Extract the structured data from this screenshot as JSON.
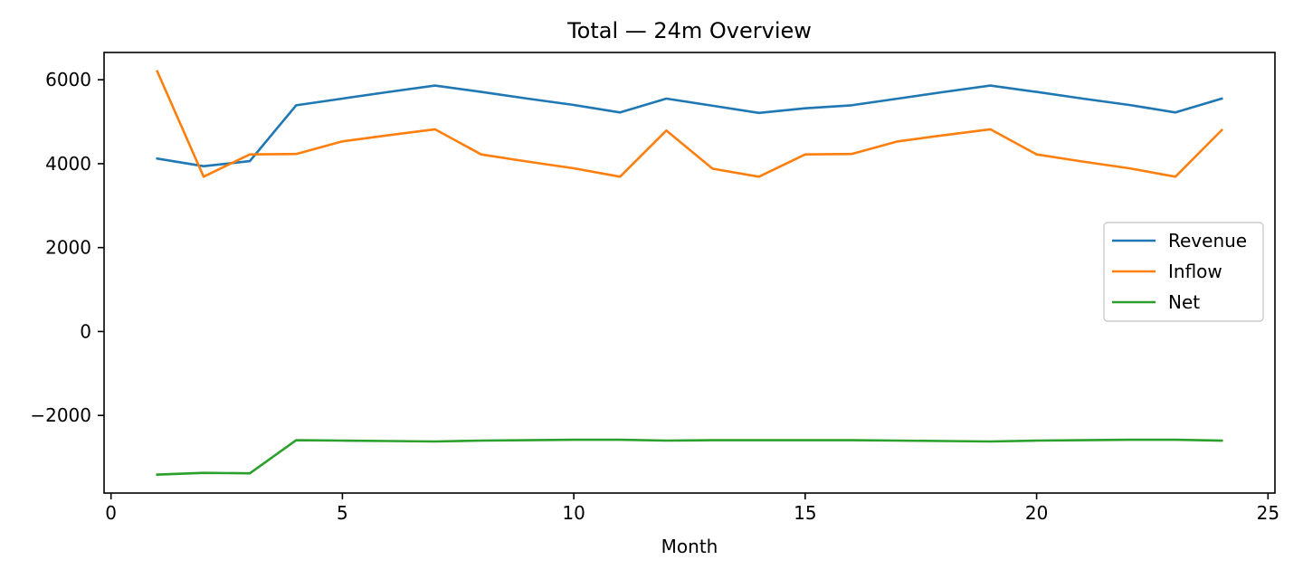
{
  "chart_data": {
    "type": "line",
    "title": "Total — 24m Overview",
    "xlabel": "Month",
    "ylabel": "",
    "x": [
      1,
      2,
      3,
      4,
      5,
      6,
      7,
      8,
      9,
      10,
      11,
      12,
      13,
      14,
      15,
      16,
      17,
      18,
      19,
      20,
      21,
      22,
      23,
      24
    ],
    "xlim": [
      -0.15,
      25.15
    ],
    "ylim": [
      -3850,
      6650
    ],
    "xticks": [
      0,
      5,
      10,
      15,
      20,
      25
    ],
    "yticks": [
      -2000,
      0,
      2000,
      4000,
      6000
    ],
    "ytick_labels": [
      "−2000",
      "0",
      "2000",
      "4000",
      "6000"
    ],
    "grid": false,
    "legend_position": "center-right",
    "series": [
      {
        "name": "Revenue",
        "color": "#1f77b4",
        "values": [
          4120,
          3940,
          4060,
          5390,
          5550,
          5710,
          5860,
          5710,
          5550,
          5400,
          5220,
          5550,
          5380,
          5210,
          5320,
          5390,
          5550,
          5710,
          5860,
          5710,
          5550,
          5400,
          5220,
          5550
        ]
      },
      {
        "name": "Inflow",
        "color": "#ff7f0e",
        "values": [
          6200,
          3690,
          4220,
          4230,
          4530,
          4680,
          4820,
          4220,
          4050,
          3890,
          3690,
          4790,
          3880,
          3690,
          4220,
          4230,
          4530,
          4680,
          4820,
          4220,
          4050,
          3890,
          3690,
          4800
        ]
      },
      {
        "name": "Net",
        "color": "#2ca02c",
        "values": [
          -3410,
          -3370,
          -3380,
          -2590,
          -2600,
          -2610,
          -2620,
          -2600,
          -2590,
          -2580,
          -2580,
          -2600,
          -2590,
          -2590,
          -2590,
          -2590,
          -2600,
          -2610,
          -2620,
          -2600,
          -2590,
          -2580,
          -2580,
          -2600
        ]
      }
    ]
  }
}
